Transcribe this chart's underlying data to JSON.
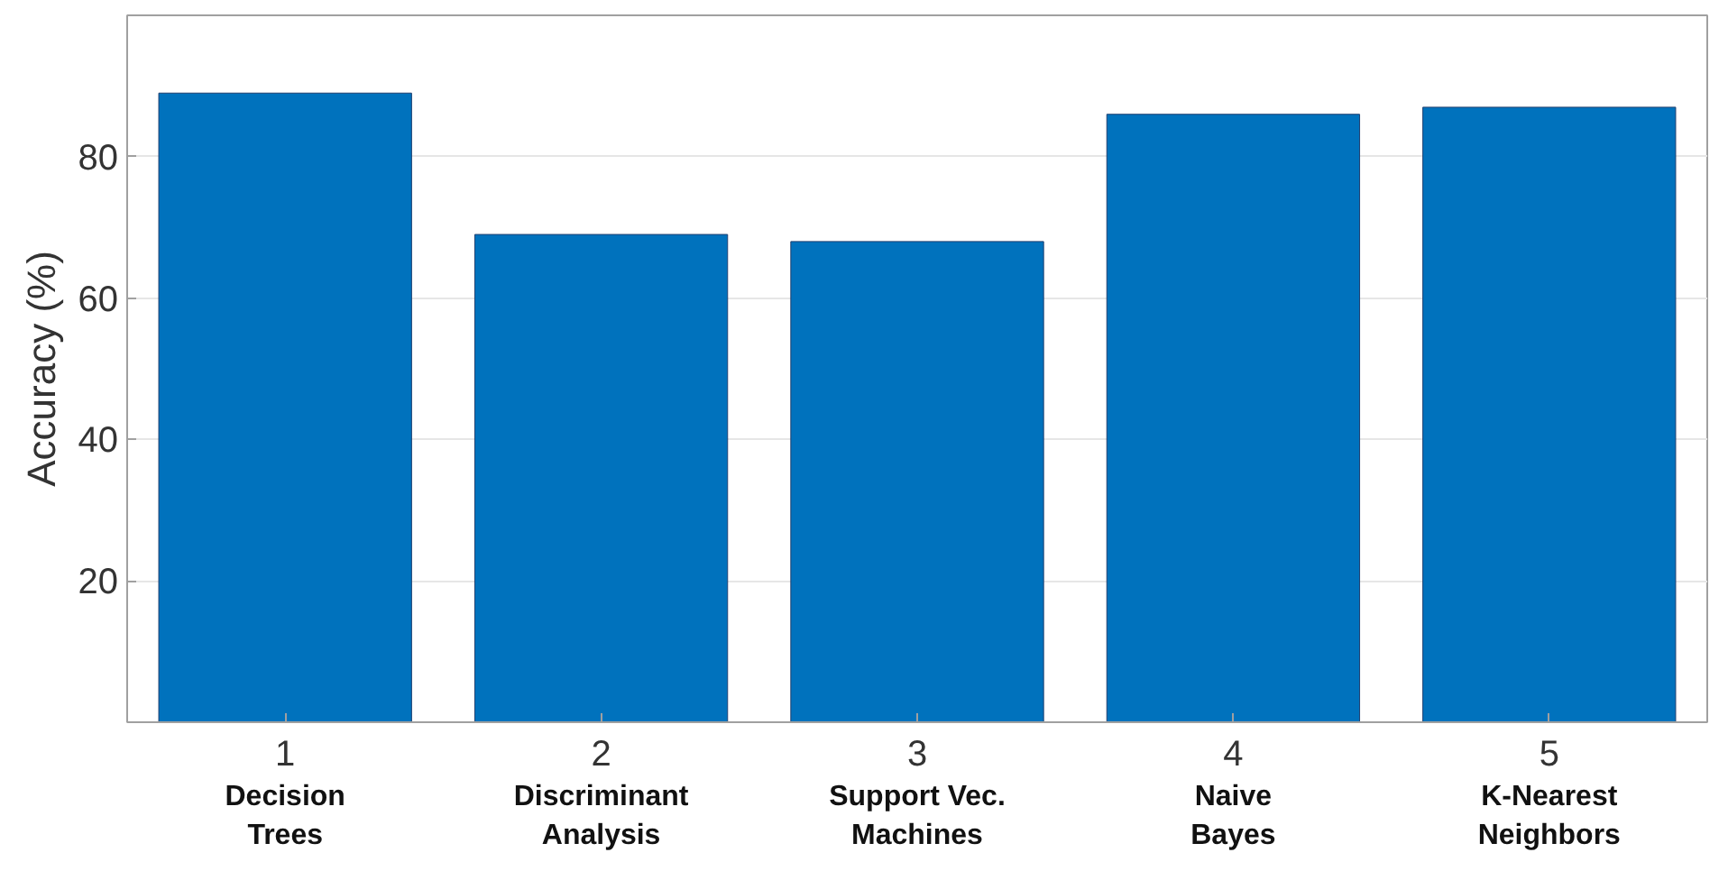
{
  "chart_data": {
    "type": "bar",
    "ylabel": "Accuracy (%)",
    "x": [
      1,
      2,
      3,
      4,
      5
    ],
    "values": [
      89,
      69,
      68,
      86,
      87
    ],
    "color": "#0072bd",
    "xlim": [
      0.5,
      5.5
    ],
    "xticks": [
      1,
      2,
      3,
      4,
      5
    ],
    "ylim": [
      0,
      100
    ],
    "yticks": [
      20,
      40,
      60,
      80
    ],
    "grid": "y",
    "annotations": [
      "Decision\nTrees",
      "Discriminant\nAnalysis",
      "Support Vec.\nMachines",
      "Naive\nBayes",
      "K-Nearest\nNeighbors"
    ]
  }
}
